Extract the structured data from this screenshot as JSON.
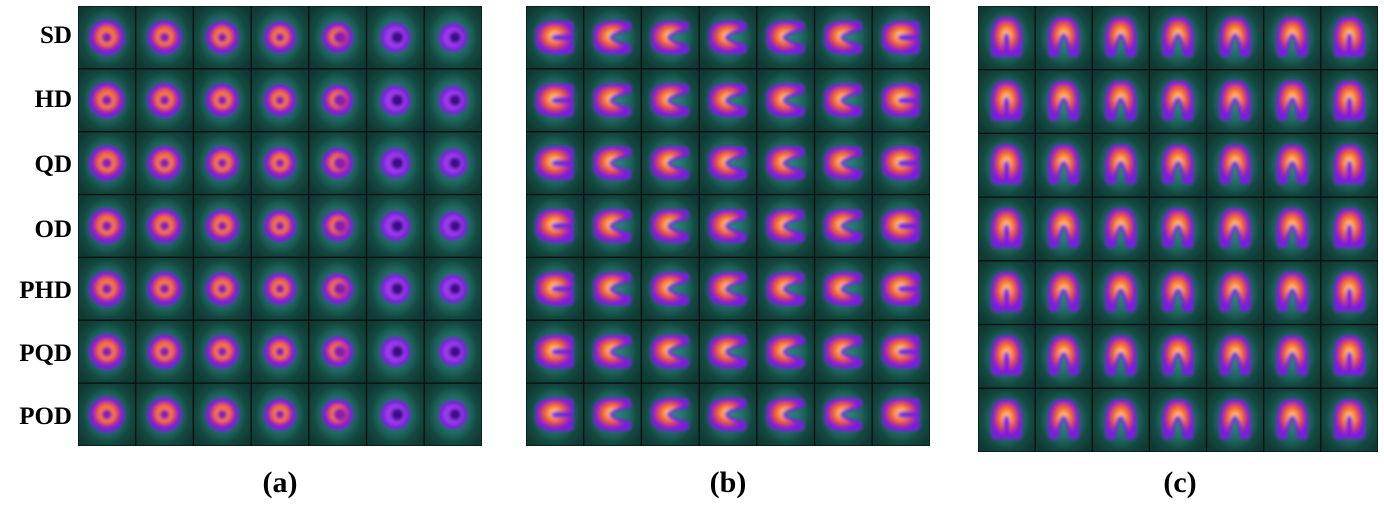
{
  "row_labels": [
    "SD",
    "HD",
    "QD",
    "OD",
    "PHD",
    "PQD",
    "POD"
  ],
  "panel_captions": [
    "(a)",
    "(b)",
    "(c)"
  ],
  "grid": {
    "rows": 7,
    "cols": 7
  },
  "colors": {
    "background_tissue": "#0f3a34",
    "tissue_highlight": "#1f7265",
    "halo": "#2f8f88",
    "edge_purple": "#7a1fe0",
    "mid_orange": "#ff7a2a",
    "core_yellow": "#fff3b0",
    "separator": "#050f0d"
  }
}
